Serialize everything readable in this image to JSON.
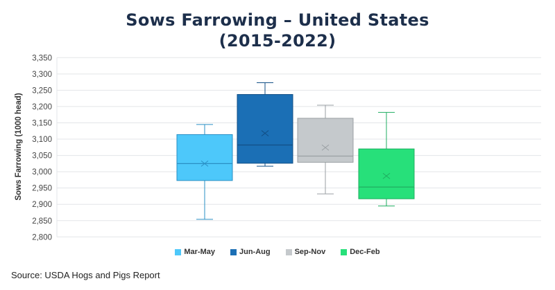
{
  "chart_data": {
    "type": "box",
    "title_line1": "Sows Farrowing – United States",
    "title_line2": "(2015-2022)",
    "xlabel": "",
    "ylabel": "Sows Farrowing (1000 head)",
    "ylim": [
      2800,
      3350
    ],
    "yticks": [
      2800,
      2850,
      2900,
      2950,
      3000,
      3050,
      3100,
      3150,
      3200,
      3250,
      3300,
      3350
    ],
    "ytick_labels": [
      "2,800",
      "2,850",
      "2,900",
      "2,950",
      "3,000",
      "3,050",
      "3,100",
      "3,150",
      "3,200",
      "3,250",
      "3,300",
      "3,350"
    ],
    "grid": true,
    "legend_position": "bottom",
    "series": [
      {
        "name": "Mar-May",
        "color": "#4dc8fa",
        "line": "#2a8fc4",
        "min": 2854,
        "q1": 2973,
        "median": 3025,
        "mean": 3025,
        "q3": 3114,
        "max": 3145
      },
      {
        "name": "Jun-Aug",
        "color": "#1b6fb5",
        "line": "#124f86",
        "min": 3017,
        "q1": 3026,
        "median": 3082,
        "mean": 3118,
        "q3": 3237,
        "max": 3273
      },
      {
        "name": "Sep-Nov",
        "color": "#c5c9cc",
        "line": "#9a9fa3",
        "min": 2932,
        "q1": 3029,
        "median": 3048,
        "mean": 3074,
        "q3": 3164,
        "max": 3204
      },
      {
        "name": "Dec-Feb",
        "color": "#27e07a",
        "line": "#1fae60",
        "min": 2895,
        "q1": 2917,
        "median": 2953,
        "mean": 2987,
        "q3": 3070,
        "max": 3182
      }
    ]
  },
  "source": "Source: USDA Hogs and Pigs Report"
}
